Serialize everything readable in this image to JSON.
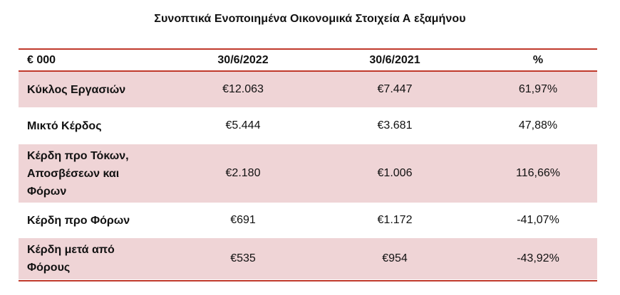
{
  "title": "Συνοπτικά Ενοποιημένα Οικονομικά Στοιχεία  Α εξαμήνου",
  "table": {
    "headers": [
      "€ 000",
      "30/6/2022",
      "30/6/2021",
      "%"
    ],
    "rows": [
      {
        "label_lines": [
          "Κύκλος Εργασιών"
        ],
        "v2022": "€12.063",
        "v2021": "€7.447",
        "pct": "61,97%"
      },
      {
        "label_lines": [
          "Μικτό Κέρδος"
        ],
        "v2022": "€5.444",
        "v2021": "€3.681",
        "pct": "47,88%"
      },
      {
        "label_lines": [
          "Κέρδη προ Τόκων,",
          "Αποσβέσεων και",
          "Φόρων"
        ],
        "v2022": "€2.180",
        "v2021": "€1.006",
        "pct": "116,66%"
      },
      {
        "label_lines": [
          "Κέρδη προ Φόρων"
        ],
        "v2022": "€691",
        "v2021": "€1.172",
        "pct": "-41,07%"
      },
      {
        "label_lines": [
          "Κέρδη μετά από",
          "Φόρους"
        ],
        "v2022": "€535",
        "v2021": "€954",
        "pct": "-43,92%"
      }
    ]
  },
  "colors": {
    "accent": "#c0392b",
    "row_shade": "#efd4d6"
  }
}
